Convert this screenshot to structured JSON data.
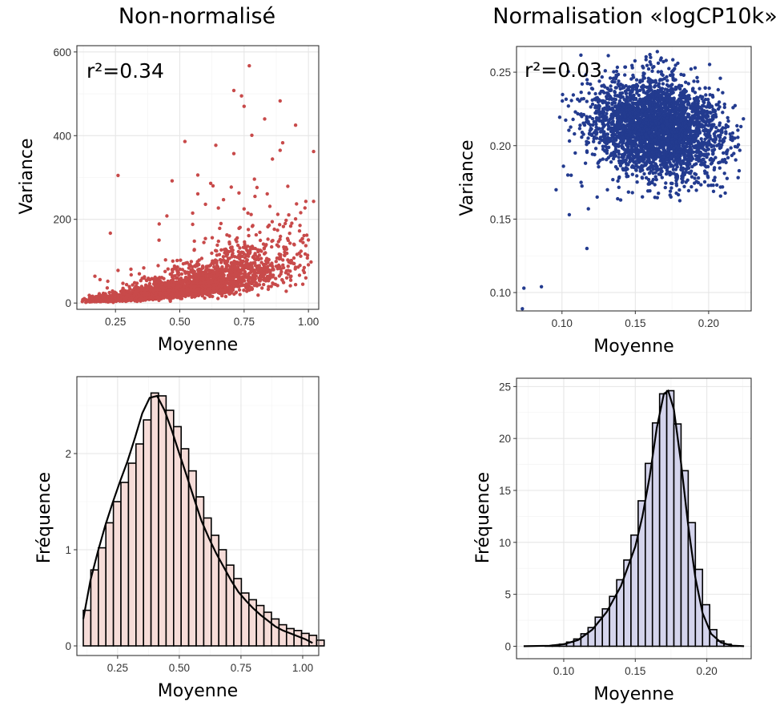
{
  "columns": {
    "left_title": "Non-normalisé",
    "right_title": "Normalisation «logCP10k»"
  },
  "colors": {
    "raw_points": "#c84a4a",
    "norm_points": "#233b8f",
    "raw_hist_fill": "#f6dcd8",
    "norm_hist_fill": "#d4d4ec",
    "hist_outline": "#000000"
  },
  "chart_data": [
    {
      "id": "raw-scatter",
      "type": "scatter",
      "title": "",
      "annotation": "r²=0.34",
      "xlabel": "Moyenne",
      "ylabel": "Variance",
      "xlim": [
        0.1,
        1.04
      ],
      "ylim": [
        -15,
        615
      ],
      "xticks": [
        0.25,
        0.5,
        0.75,
        1.0
      ],
      "xtick_labels": [
        "0.25",
        "0.50",
        "0.75",
        "1.00"
      ],
      "yticks": [
        0,
        200,
        400,
        600
      ],
      "ytick_labels": [
        "0",
        "200",
        "400",
        "600"
      ],
      "grid": true,
      "points": [
        [
          0.77,
          567
        ],
        [
          0.71,
          508
        ],
        [
          0.74,
          495
        ],
        [
          0.75,
          470
        ],
        [
          0.89,
          483
        ],
        [
          0.83,
          440
        ],
        [
          0.95,
          425
        ],
        [
          0.78,
          401
        ],
        [
          0.9,
          383
        ],
        [
          0.52,
          386
        ],
        [
          0.64,
          377
        ],
        [
          0.71,
          357
        ],
        [
          1.02,
          362
        ],
        [
          0.89,
          365
        ],
        [
          0.86,
          344
        ],
        [
          0.26,
          305
        ],
        [
          0.57,
          306
        ],
        [
          0.47,
          292
        ],
        [
          0.62,
          286
        ],
        [
          0.79,
          296
        ],
        [
          0.92,
          279
        ],
        [
          0.73,
          263
        ],
        [
          0.84,
          261
        ],
        [
          0.99,
          243
        ],
        [
          1.02,
          243
        ],
        [
          0.97,
          216
        ],
        [
          0.91,
          190
        ],
        [
          0.57,
          261
        ],
        [
          0.67,
          247
        ],
        [
          0.7,
          277
        ],
        [
          0.8,
          276
        ],
        [
          0.23,
          167
        ],
        [
          0.45,
          208
        ],
        [
          0.55,
          215
        ],
        [
          0.6,
          236
        ],
        [
          0.65,
          227
        ],
        [
          0.75,
          225
        ],
        [
          0.85,
          231
        ],
        [
          0.95,
          201
        ],
        [
          0.88,
          174
        ],
        [
          0.66,
          190
        ],
        [
          0.55,
          188
        ],
        [
          0.42,
          189
        ],
        [
          0.99,
          137
        ],
        [
          0.97,
          112
        ],
        [
          1.01,
          98
        ],
        [
          0.96,
          86
        ],
        [
          0.93,
          62
        ],
        [
          0.95,
          44
        ],
        [
          0.99,
          60
        ],
        [
          0.92,
          103
        ],
        [
          0.17,
          64
        ],
        [
          0.19,
          56
        ],
        [
          0.22,
          52
        ],
        [
          0.26,
          78
        ],
        [
          0.31,
          81
        ],
        [
          0.36,
          84
        ]
      ],
      "dense_cloud": {
        "x_range": [
          0.12,
          1.0
        ],
        "n_points": 2600,
        "mean_variance_trend": "variance increases roughly with mean, from ~5 at 0.12 to ~90 at 0.9"
      }
    },
    {
      "id": "norm-scatter",
      "type": "scatter",
      "title": "",
      "annotation": "r²=0.03",
      "xlabel": "Moyenne",
      "ylabel": "Variance",
      "xlim": [
        0.069,
        0.229
      ],
      "ylim": [
        0.0875,
        0.2675
      ],
      "xticks": [
        0.1,
        0.15,
        0.2
      ],
      "xtick_labels": [
        "0.10",
        "0.15",
        "0.20"
      ],
      "yticks": [
        0.1,
        0.15,
        0.2,
        0.25
      ],
      "ytick_labels": [
        "0.10",
        "0.15",
        "0.20",
        "0.25"
      ],
      "grid": true,
      "points": [
        [
          0.073,
          0.089
        ],
        [
          0.074,
          0.103
        ],
        [
          0.086,
          0.104
        ],
        [
          0.117,
          0.13
        ],
        [
          0.105,
          0.153
        ],
        [
          0.118,
          0.157
        ],
        [
          0.096,
          0.17
        ],
        [
          0.104,
          0.18
        ],
        [
          0.101,
          0.186
        ],
        [
          0.109,
          0.195
        ],
        [
          0.165,
          0.264
        ],
        [
          0.16,
          0.262
        ],
        [
          0.171,
          0.258
        ],
        [
          0.148,
          0.253
        ],
        [
          0.183,
          0.248
        ],
        [
          0.137,
          0.248
        ],
        [
          0.213,
          0.219
        ],
        [
          0.222,
          0.213
        ],
        [
          0.216,
          0.206
        ],
        [
          0.21,
          0.195
        ],
        [
          0.124,
          0.165
        ],
        [
          0.131,
          0.17
        ],
        [
          0.14,
          0.163
        ],
        [
          0.148,
          0.168
        ],
        [
          0.113,
          0.175
        ],
        [
          0.204,
          0.185
        ],
        [
          0.193,
          0.178
        ],
        [
          0.182,
          0.175
        ]
      ],
      "dense_cloud": {
        "center": [
          0.165,
          0.212
        ],
        "spread": [
          0.022,
          0.017
        ],
        "n_points": 3200
      }
    },
    {
      "id": "raw-hist",
      "type": "bar",
      "title": "",
      "xlabel": "Moyenne",
      "ylabel": "Fréquence",
      "xlim": [
        0.085,
        1.065
      ],
      "ylim": [
        -0.1,
        2.8
      ],
      "xticks": [
        0.25,
        0.5,
        0.75,
        1.0
      ],
      "xtick_labels": [
        "0.25",
        "0.50",
        "0.75",
        "1.00"
      ],
      "yticks": [
        0,
        1,
        2
      ],
      "ytick_labels": [
        "0",
        "1",
        "2"
      ],
      "grid": true,
      "bin_start": 0.111,
      "bin_width": 0.0305,
      "values": [
        0.37,
        0.79,
        1.02,
        1.28,
        1.5,
        1.7,
        1.9,
        2.1,
        2.35,
        2.63,
        2.6,
        2.45,
        2.28,
        2.05,
        1.82,
        1.55,
        1.33,
        1.15,
        1.0,
        0.84,
        0.7,
        0.55,
        0.48,
        0.42,
        0.35,
        0.28,
        0.22,
        0.18,
        0.16,
        0.13,
        0.11,
        0.06
      ],
      "density_curve": [
        [
          0.111,
          0.28
        ],
        [
          0.14,
          0.68
        ],
        [
          0.17,
          0.98
        ],
        [
          0.2,
          1.25
        ],
        [
          0.23,
          1.49
        ],
        [
          0.26,
          1.71
        ],
        [
          0.29,
          1.92
        ],
        [
          0.32,
          2.16
        ],
        [
          0.35,
          2.42
        ],
        [
          0.38,
          2.58
        ],
        [
          0.41,
          2.6
        ],
        [
          0.44,
          2.45
        ],
        [
          0.47,
          2.24
        ],
        [
          0.5,
          2.0
        ],
        [
          0.53,
          1.77
        ],
        [
          0.56,
          1.53
        ],
        [
          0.59,
          1.3
        ],
        [
          0.62,
          1.12
        ],
        [
          0.65,
          0.96
        ],
        [
          0.68,
          0.82
        ],
        [
          0.71,
          0.68
        ],
        [
          0.74,
          0.56
        ],
        [
          0.77,
          0.47
        ],
        [
          0.8,
          0.39
        ],
        [
          0.83,
          0.32
        ],
        [
          0.86,
          0.26
        ],
        [
          0.89,
          0.2
        ],
        [
          0.92,
          0.16
        ],
        [
          0.95,
          0.13
        ],
        [
          0.98,
          0.1
        ],
        [
          1.01,
          0.07
        ],
        [
          1.04,
          0.03
        ]
      ]
    },
    {
      "id": "norm-hist",
      "type": "bar",
      "title": "",
      "xlabel": "Moyenne",
      "ylabel": "Fréquence",
      "xlim": [
        0.067,
        0.231
      ],
      "ylim": [
        -1.2,
        25.8
      ],
      "xticks": [
        0.1,
        0.15,
        0.2
      ],
      "xtick_labels": [
        "0.10",
        "0.15",
        "0.20"
      ],
      "yticks": [
        0,
        5,
        10,
        15,
        20,
        25
      ],
      "ytick_labels": [
        "0",
        "5",
        "10",
        "15",
        "20",
        "25"
      ],
      "grid": true,
      "bin_start": 0.072,
      "bin_width": 0.005,
      "values": [
        0.0,
        0.0,
        0.0,
        0.05,
        0.1,
        0.2,
        0.4,
        0.7,
        1.2,
        1.8,
        2.8,
        3.6,
        4.8,
        6.4,
        8.3,
        10.7,
        14.0,
        17.6,
        21.5,
        24.3,
        24.6,
        21.4,
        16.9,
        11.9,
        7.4,
        4.0,
        1.6,
        0.5,
        0.2,
        0.05,
        0.0
      ],
      "density_curve": [
        [
          0.072,
          0.0
        ],
        [
          0.09,
          0.05
        ],
        [
          0.1,
          0.2
        ],
        [
          0.11,
          0.6
        ],
        [
          0.12,
          1.6
        ],
        [
          0.13,
          3.3
        ],
        [
          0.14,
          5.8
        ],
        [
          0.15,
          9.6
        ],
        [
          0.155,
          12.5
        ],
        [
          0.16,
          16.3
        ],
        [
          0.165,
          21.0
        ],
        [
          0.17,
          24.3
        ],
        [
          0.173,
          24.6
        ],
        [
          0.177,
          22.8
        ],
        [
          0.182,
          17.6
        ],
        [
          0.187,
          11.6
        ],
        [
          0.192,
          6.6
        ],
        [
          0.197,
          3.2
        ],
        [
          0.203,
          1.2
        ],
        [
          0.21,
          0.35
        ],
        [
          0.218,
          0.06
        ],
        [
          0.226,
          0.0
        ]
      ]
    }
  ]
}
